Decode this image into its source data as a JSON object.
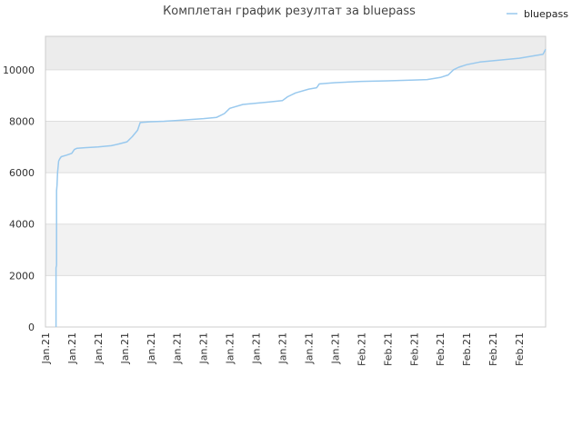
{
  "chart_data": {
    "type": "line",
    "title": "Комплетан график резултат за bluepass",
    "legend": {
      "position": "top-right",
      "label": "bluepass"
    },
    "colors": {
      "line": "#99c9ee",
      "band_alt": "#f2f2f2",
      "band_top": "#ececec",
      "grid": "#dddddd",
      "axis": "#cccccc"
    },
    "grid": true,
    "ylim": [
      0,
      11300
    ],
    "yticks": [
      0,
      2000,
      4000,
      6000,
      8000,
      10000
    ],
    "xlim": [
      0,
      19
    ],
    "xticks": [
      {
        "x": 0,
        "label": "Jan.21"
      },
      {
        "x": 1,
        "label": "Jan.21"
      },
      {
        "x": 2,
        "label": "Jan.21"
      },
      {
        "x": 3,
        "label": "Jan.21"
      },
      {
        "x": 4,
        "label": "Jan.21"
      },
      {
        "x": 5,
        "label": "Jan.21"
      },
      {
        "x": 6,
        "label": "Jan.21"
      },
      {
        "x": 7,
        "label": "Jan.21"
      },
      {
        "x": 8,
        "label": "Jan.21"
      },
      {
        "x": 9,
        "label": "Jan.21"
      },
      {
        "x": 10,
        "label": "Jan.21"
      },
      {
        "x": 11,
        "label": "Jan.21"
      },
      {
        "x": 12,
        "label": "Feb.21"
      },
      {
        "x": 13,
        "label": "Feb.21"
      },
      {
        "x": 14,
        "label": "Feb.21"
      },
      {
        "x": 15,
        "label": "Feb.21"
      },
      {
        "x": 16,
        "label": "Feb.21"
      },
      {
        "x": 17,
        "label": "Feb.21"
      },
      {
        "x": 18,
        "label": "Feb.21"
      }
    ],
    "series": [
      {
        "name": "bluepass",
        "x": [
          0.4,
          0.4,
          0.42,
          0.42,
          0.44,
          0.46,
          0.5,
          0.55,
          0.6,
          0.8,
          1.0,
          1.1,
          1.2,
          1.5,
          2.0,
          2.5,
          2.8,
          3.1,
          3.3,
          3.5,
          3.6,
          4.0,
          4.5,
          5.0,
          6.0,
          6.5,
          6.8,
          7.0,
          7.5,
          8.0,
          8.5,
          9.0,
          9.2,
          9.5,
          10.0,
          10.3,
          10.4,
          11.0,
          12.0,
          13.0,
          14.0,
          14.5,
          15.0,
          15.3,
          15.5,
          15.7,
          16.0,
          16.5,
          17.0,
          18.0,
          18.9,
          19.0
        ],
        "y": [
          0,
          2300,
          2400,
          5300,
          5500,
          6000,
          6450,
          6550,
          6620,
          6680,
          6750,
          6900,
          6950,
          6970,
          7000,
          7050,
          7120,
          7200,
          7400,
          7650,
          7950,
          7980,
          8000,
          8030,
          8100,
          8150,
          8300,
          8500,
          8650,
          8700,
          8750,
          8800,
          8950,
          9100,
          9250,
          9300,
          9450,
          9500,
          9550,
          9570,
          9600,
          9620,
          9700,
          9800,
          10000,
          10100,
          10200,
          10300,
          10350,
          10450,
          10600,
          10800
        ]
      }
    ]
  }
}
